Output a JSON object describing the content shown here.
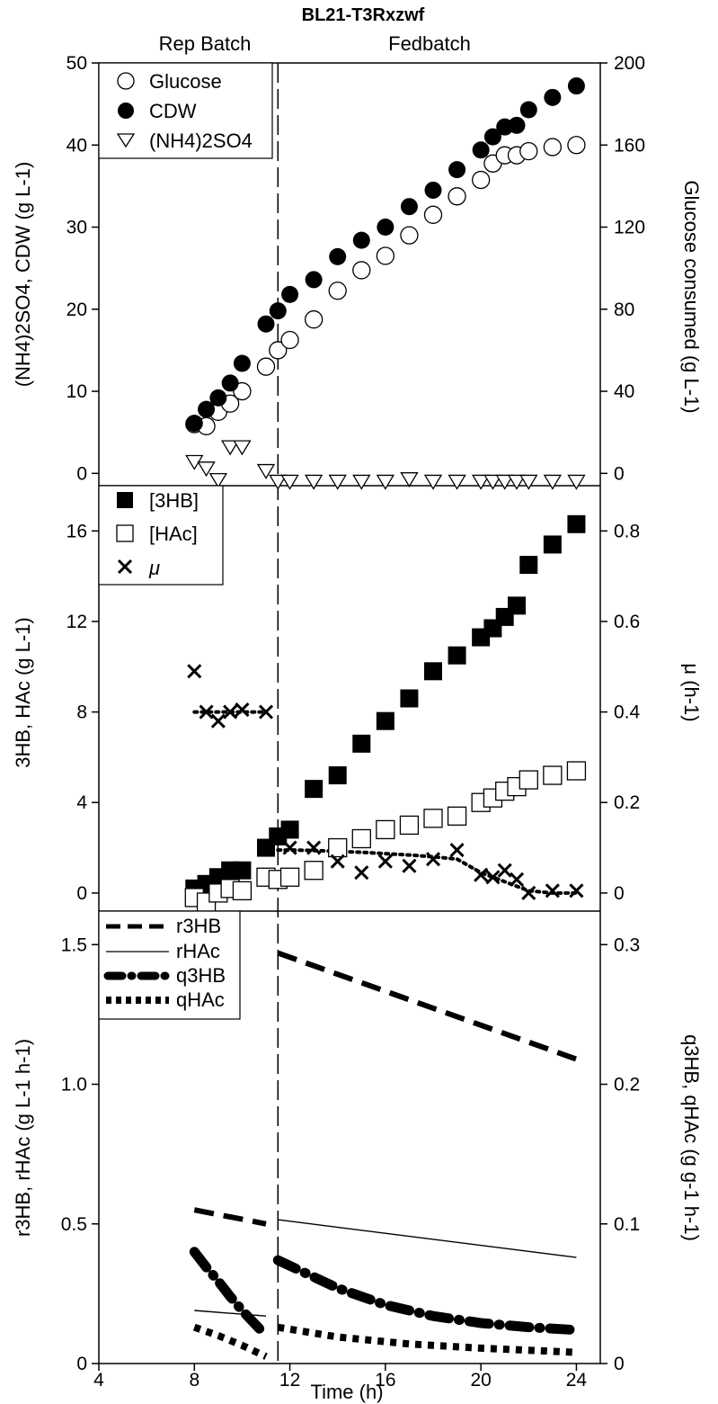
{
  "figure_title": "BL21-T3Rxzwf",
  "phase_labels": {
    "left": "Rep Batch",
    "right": "Fedbatch"
  },
  "phase_switch_time": 11.5,
  "x_axis": {
    "label": "Time (h)",
    "range": [
      4,
      25
    ],
    "ticks": [
      4,
      8,
      12,
      16,
      20,
      24
    ]
  },
  "panels": {
    "top": {
      "left_label": "(NH4)2SO4, CDW (g L-1)",
      "right_label": "Glucose consumed (g L-1)",
      "left_range": [
        -1.5,
        50
      ],
      "left_ticks": [
        "0",
        "10",
        "20",
        "30",
        "40",
        "50"
      ],
      "right_range": [
        -6,
        200
      ],
      "right_ticks": [
        "0",
        "40",
        "80",
        "120",
        "160",
        "200"
      ],
      "legend": [
        "Glucose",
        "CDW",
        "(NH4)2SO4"
      ]
    },
    "middle": {
      "left_label": "3HB, HAc (g L-1)",
      "right_label": "μ (h-1)",
      "left_range": [
        -0.8,
        18
      ],
      "left_ticks": [
        "0",
        "4",
        "8",
        "12",
        "16"
      ],
      "right_range": [
        -0.04,
        0.9
      ],
      "right_ticks": [
        "0",
        "0.2",
        "0.4",
        "0.6",
        "0.8"
      ],
      "legend": [
        "[3HB]",
        "[HAc]",
        "μ"
      ]
    },
    "bottom": {
      "left_label": "r3HB, rHAc (g L-1 h-1)",
      "right_label": "q3HB, qHAc (g g-1 h-1)",
      "left_range": [
        0,
        1.62
      ],
      "left_ticks": [
        "0",
        "0.5",
        "1.0",
        "1.5"
      ],
      "right_range": [
        0,
        0.324
      ],
      "right_ticks": [
        "0",
        "0.1",
        "0.2",
        "0.3"
      ],
      "legend": [
        "r3HB",
        "rHAc",
        "q3HB",
        "qHAc"
      ]
    }
  },
  "chart_data": [
    {
      "type": "scatter",
      "panel": "top",
      "series": [
        {
          "name": "Glucose",
          "axis": "right",
          "x": [
            8.0,
            8.5,
            9.0,
            9.5,
            10.0,
            11.0,
            11.5,
            12.0,
            13.0,
            14.0,
            15.0,
            16.0,
            17.0,
            18.0,
            19.0,
            20.0,
            20.5,
            21.0,
            21.5,
            22.0,
            23.0,
            24.0
          ],
          "y": [
            24,
            23,
            30,
            34,
            40,
            52,
            60,
            65,
            75,
            89,
            99,
            106,
            116,
            126,
            135,
            143,
            151,
            155,
            155,
            157,
            159,
            160
          ]
        },
        {
          "name": "CDW",
          "axis": "left",
          "x": [
            8.0,
            8.5,
            9.0,
            9.5,
            10.0,
            11.0,
            11.5,
            12.0,
            13.0,
            14.0,
            15.0,
            16.0,
            17.0,
            18.0,
            19.0,
            20.0,
            20.5,
            21.0,
            21.5,
            22.0,
            23.0,
            24.0
          ],
          "y": [
            6.1,
            7.8,
            9.2,
            11.0,
            13.4,
            18.2,
            19.8,
            21.8,
            23.6,
            26.4,
            28.4,
            30.0,
            32.5,
            34.5,
            37.0,
            39.4,
            41.0,
            42.2,
            42.4,
            44.3,
            45.8,
            47.2
          ]
        },
        {
          "name": "(NH4)2SO4",
          "axis": "left",
          "x": [
            8.0,
            8.5,
            9.0,
            9.5,
            10.0,
            11.0,
            11.5,
            12.0,
            13.0,
            14.0,
            15.0,
            16.0,
            17.0,
            18.0,
            19.0,
            20.0,
            20.5,
            21.0,
            21.5,
            22.0,
            23.0,
            24.0
          ],
          "y": [
            1.4,
            0.6,
            -0.8,
            3.2,
            3.2,
            0.3,
            -1.0,
            -1.0,
            -1.0,
            -1.0,
            -1.0,
            -1.0,
            -0.7,
            -1.0,
            -1.0,
            -1.0,
            -1.0,
            -1.0,
            -1.0,
            -1.0,
            -1.0,
            -1.0
          ]
        }
      ]
    },
    {
      "type": "scatter",
      "panel": "middle",
      "series": [
        {
          "name": "[3HB]",
          "axis": "left",
          "x": [
            8.0,
            8.5,
            9.0,
            9.5,
            10.0,
            11.0,
            11.5,
            12.0,
            13.0,
            14.0,
            15.0,
            16.0,
            17.0,
            18.0,
            19.0,
            20.0,
            20.5,
            21.0,
            21.5,
            22.0,
            23.0,
            24.0
          ],
          "y": [
            0.2,
            0.4,
            0.7,
            1.0,
            1.0,
            2.0,
            2.5,
            2.8,
            4.6,
            5.2,
            6.6,
            7.6,
            8.6,
            9.8,
            10.5,
            11.3,
            11.7,
            12.2,
            12.7,
            14.5,
            15.4,
            16.3
          ]
        },
        {
          "name": "[HAc]",
          "axis": "left",
          "x": [
            8.0,
            8.5,
            9.0,
            9.5,
            10.0,
            11.0,
            11.5,
            12.0,
            13.0,
            14.0,
            15.0,
            16.0,
            17.0,
            18.0,
            19.0,
            20.0,
            20.5,
            21.0,
            21.5,
            22.0,
            23.0,
            24.0
          ],
          "y": [
            -0.2,
            -0.4,
            0.0,
            0.2,
            0.1,
            0.7,
            0.6,
            0.7,
            1.0,
            2.0,
            2.4,
            2.8,
            3.0,
            3.3,
            3.4,
            4.0,
            4.2,
            4.5,
            4.7,
            5.0,
            5.2,
            5.4
          ]
        },
        {
          "name": "μ",
          "axis": "right",
          "x": [
            8.0,
            8.5,
            9.0,
            9.5,
            10.0,
            11.0,
            12.0,
            13.0,
            14.0,
            15.0,
            16.0,
            17.0,
            18.0,
            19.0,
            20.0,
            20.5,
            21.0,
            21.5,
            22.0,
            23.0,
            24.0
          ],
          "y": [
            0.49,
            0.4,
            0.38,
            0.4,
            0.405,
            0.4,
            0.1,
            0.1,
            0.07,
            0.045,
            0.07,
            0.06,
            0.075,
            0.095,
            0.04,
            0.035,
            0.05,
            0.03,
            0.0,
            0.005,
            0.005
          ]
        },
        {
          "name": "μ fit",
          "axis": "right",
          "style": "dotted",
          "x": [
            8.0,
            8.5,
            9.0,
            9.5,
            10.0,
            10.5,
            11.0,
            11.5,
            12.0,
            13.0,
            14.0,
            15.0,
            16.0,
            17.0,
            18.0,
            19.0,
            19.5,
            20.0,
            20.5,
            21.0,
            21.5,
            22.0,
            23.0,
            24.0
          ],
          "y": [
            0.4,
            0.4,
            0.4,
            0.4,
            0.4,
            0.4,
            0.4,
            0.095,
            0.095,
            0.094,
            0.092,
            0.09,
            0.087,
            0.084,
            0.08,
            0.075,
            0.06,
            0.045,
            0.035,
            0.025,
            0.015,
            0.005,
            0.0,
            0.0
          ]
        }
      ]
    },
    {
      "type": "line",
      "panel": "bottom",
      "series": [
        {
          "name": "r3HB",
          "axis": "left",
          "style": "dashed",
          "segments": [
            {
              "x": [
                8.0,
                11.0
              ],
              "y": [
                0.55,
                0.5
              ]
            },
            {
              "x": [
                11.5,
                24.0
              ],
              "y": [
                1.47,
                1.09
              ]
            }
          ]
        },
        {
          "name": "rHAc",
          "axis": "left",
          "style": "thin",
          "segments": [
            {
              "x": [
                8.0,
                11.0
              ],
              "y": [
                0.19,
                0.17
              ]
            },
            {
              "x": [
                11.5,
                24.0
              ],
              "y": [
                0.515,
                0.38
              ]
            }
          ]
        },
        {
          "name": "q3HB",
          "axis": "right",
          "style": "dash-dot",
          "segments": [
            {
              "x": [
                8.0,
                8.5,
                9.0,
                9.5,
                10.0,
                10.5,
                11.0
              ],
              "y": [
                0.08,
                0.069,
                0.059,
                0.048,
                0.038,
                0.029,
                0.02
              ]
            },
            {
              "x": [
                11.5,
                12.5,
                14.0,
                16.0,
                18.0,
                20.0,
                22.0,
                24.0
              ],
              "y": [
                0.074,
                0.066,
                0.054,
                0.042,
                0.034,
                0.029,
                0.026,
                0.024
              ]
            }
          ]
        },
        {
          "name": "qHAc",
          "axis": "right",
          "style": "dotted",
          "segments": [
            {
              "x": [
                8.0,
                9.0,
                10.0,
                11.0
              ],
              "y": [
                0.026,
                0.02,
                0.013,
                0.005
              ]
            },
            {
              "x": [
                11.5,
                14.0,
                17.0,
                20.0,
                24.0
              ],
              "y": [
                0.026,
                0.019,
                0.014,
                0.011,
                0.008
              ]
            }
          ]
        }
      ]
    }
  ]
}
